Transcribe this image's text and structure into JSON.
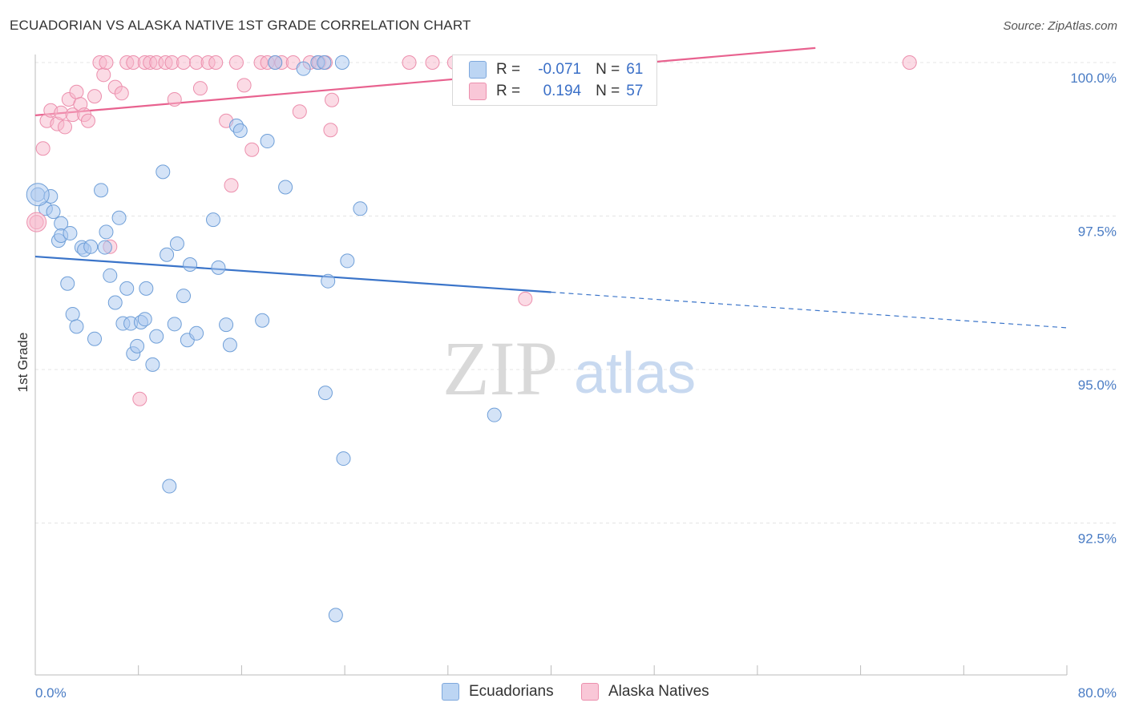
{
  "header": {
    "title": "ECUADORIAN VS ALASKA NATIVE 1ST GRADE CORRELATION CHART",
    "source": "Source: ZipAtlas.com"
  },
  "watermark": {
    "zip": "ZIP",
    "atlas": "atlas"
  },
  "legend": {
    "rows": [
      {
        "r_label": "R =",
        "r_value": "-0.071",
        "n_label": "N =",
        "n_value": "61",
        "color": "#a9c8f0"
      },
      {
        "r_label": "R =",
        "r_value": "0.194",
        "n_label": "N =",
        "n_value": "57",
        "color": "#f7b8cc"
      }
    ]
  },
  "bottom_legend": {
    "series0": "Ecuadorians",
    "series1": "Alaska Natives"
  },
  "chart_data": {
    "type": "scatter",
    "title": "ECUADORIAN VS ALASKA NATIVE 1ST GRADE CORRELATION CHART",
    "xlabel": "",
    "ylabel": "1st Grade",
    "xlim": [
      0,
      80
    ],
    "ylim": [
      90.0,
      100.3
    ],
    "x_tick_labels": [
      "0.0%",
      "80.0%"
    ],
    "y_ticks": [
      92.5,
      95.0,
      97.5,
      100.0
    ],
    "y_tick_labels": [
      "92.5%",
      "95.0%",
      "97.5%",
      "100.0%"
    ],
    "grid": true,
    "series": [
      {
        "name": "Ecuadorians",
        "color": "#a9c8f0",
        "edge_color": "#6f9fd8",
        "line_color": "#3a74c9",
        "trend": {
          "x0": 0,
          "y0": 96.84,
          "x1": 40,
          "y1": 96.26,
          "x_dashed_end": 80,
          "y_dashed_end": 95.68
        },
        "points": [
          [
            0.2,
            97.85
          ],
          [
            0.8,
            97.62
          ],
          [
            1.2,
            97.82
          ],
          [
            1.4,
            97.57
          ],
          [
            1.8,
            97.1
          ],
          [
            2.0,
            97.38
          ],
          [
            2.0,
            97.18
          ],
          [
            2.5,
            96.4
          ],
          [
            2.7,
            97.22
          ],
          [
            2.9,
            95.9
          ],
          [
            3.2,
            95.7
          ],
          [
            3.6,
            96.99
          ],
          [
            3.8,
            96.95
          ],
          [
            4.3,
            97.0
          ],
          [
            4.6,
            95.5
          ],
          [
            5.1,
            97.92
          ],
          [
            5.4,
            96.99
          ],
          [
            5.5,
            97.24
          ],
          [
            5.8,
            96.53
          ],
          [
            6.2,
            96.09
          ],
          [
            6.5,
            97.47
          ],
          [
            6.8,
            95.75
          ],
          [
            7.1,
            96.32
          ],
          [
            7.4,
            95.75
          ],
          [
            7.6,
            95.26
          ],
          [
            7.9,
            95.38
          ],
          [
            8.2,
            95.77
          ],
          [
            8.5,
            95.82
          ],
          [
            8.6,
            96.32
          ],
          [
            9.1,
            95.08
          ],
          [
            9.4,
            95.54
          ],
          [
            9.9,
            98.22
          ],
          [
            10.2,
            96.87
          ],
          [
            10.4,
            93.1
          ],
          [
            10.8,
            95.74
          ],
          [
            11.0,
            97.05
          ],
          [
            11.5,
            96.2
          ],
          [
            11.8,
            95.48
          ],
          [
            12.0,
            96.71
          ],
          [
            12.5,
            95.59
          ],
          [
            13.8,
            97.44
          ],
          [
            14.2,
            96.66
          ],
          [
            14.8,
            95.73
          ],
          [
            15.1,
            95.4
          ],
          [
            15.6,
            98.97
          ],
          [
            15.9,
            98.89
          ],
          [
            17.6,
            95.8
          ],
          [
            18.0,
            98.72
          ],
          [
            18.6,
            100.0
          ],
          [
            19.4,
            97.97
          ],
          [
            20.8,
            99.9
          ],
          [
            21.9,
            100.0
          ],
          [
            22.4,
            100.0
          ],
          [
            22.5,
            94.62
          ],
          [
            22.7,
            96.44
          ],
          [
            23.3,
            91.0
          ],
          [
            23.8,
            100.0
          ],
          [
            23.9,
            93.55
          ],
          [
            24.2,
            96.77
          ],
          [
            25.2,
            97.62
          ],
          [
            35.6,
            94.26
          ]
        ]
      },
      {
        "name": "Alaska Natives",
        "color": "#f7b8cc",
        "edge_color": "#ec8fad",
        "line_color": "#e8628f",
        "trend": {
          "x0": 0,
          "y0": 99.14,
          "x1": 80,
          "y1": 100.59
        },
        "points": [
          [
            0.1,
            97.4
          ],
          [
            0.6,
            98.6
          ],
          [
            0.9,
            99.05
          ],
          [
            1.2,
            99.22
          ],
          [
            1.7,
            99.0
          ],
          [
            2.0,
            99.18
          ],
          [
            2.3,
            98.95
          ],
          [
            2.6,
            99.4
          ],
          [
            2.9,
            99.15
          ],
          [
            3.2,
            99.52
          ],
          [
            3.5,
            99.32
          ],
          [
            3.8,
            99.15
          ],
          [
            4.1,
            99.05
          ],
          [
            4.6,
            99.45
          ],
          [
            5.0,
            100.0
          ],
          [
            5.3,
            99.8
          ],
          [
            5.5,
            100.0
          ],
          [
            5.8,
            97.0
          ],
          [
            6.2,
            99.6
          ],
          [
            6.7,
            99.5
          ],
          [
            7.1,
            100.0
          ],
          [
            7.6,
            100.0
          ],
          [
            8.1,
            94.52
          ],
          [
            8.5,
            100.0
          ],
          [
            8.9,
            100.0
          ],
          [
            9.4,
            100.0
          ],
          [
            10.1,
            100.0
          ],
          [
            10.6,
            100.0
          ],
          [
            10.8,
            99.4
          ],
          [
            11.5,
            100.0
          ],
          [
            12.5,
            100.0
          ],
          [
            12.8,
            99.58
          ],
          [
            13.4,
            100.0
          ],
          [
            14.0,
            100.0
          ],
          [
            14.8,
            99.05
          ],
          [
            15.2,
            98.0
          ],
          [
            15.6,
            100.0
          ],
          [
            16.2,
            99.63
          ],
          [
            16.8,
            98.58
          ],
          [
            17.5,
            100.0
          ],
          [
            18.0,
            100.0
          ],
          [
            18.6,
            100.0
          ],
          [
            19.1,
            100.0
          ],
          [
            20.0,
            100.0
          ],
          [
            20.5,
            99.2
          ],
          [
            21.3,
            100.0
          ],
          [
            22.0,
            100.0
          ],
          [
            22.5,
            100.0
          ],
          [
            22.9,
            98.9
          ],
          [
            23.0,
            99.39
          ],
          [
            29.0,
            100.0
          ],
          [
            30.8,
            100.0
          ],
          [
            32.5,
            100.0
          ],
          [
            38.0,
            96.15
          ],
          [
            40.0,
            100.0
          ],
          [
            41.0,
            100.0
          ],
          [
            67.8,
            100.0
          ]
        ]
      }
    ]
  }
}
